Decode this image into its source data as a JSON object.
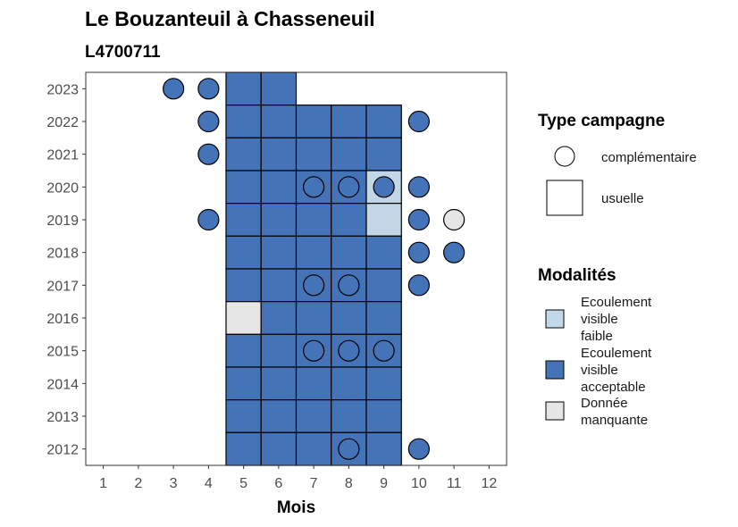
{
  "chart_data": {
    "type": "heatmap",
    "title": "Le Bouzanteuil à Chasseneuil",
    "subtitle": "L4700711",
    "xlabel": "Mois",
    "ylabel": "",
    "x_ticks": [
      "1",
      "2",
      "3",
      "4",
      "5",
      "6",
      "7",
      "8",
      "9",
      "10",
      "11",
      "12"
    ],
    "y_ticks": [
      "2012",
      "2013",
      "2014",
      "2015",
      "2016",
      "2017",
      "2018",
      "2019",
      "2020",
      "2021",
      "2022",
      "2023"
    ],
    "xlim": [
      0.5,
      12.5
    ],
    "ylim": [
      2011.5,
      2023.5
    ],
    "colors": {
      "Ecoulement visible faible": "#c2d7e7",
      "Ecoulement visible acceptable": "#4573b8",
      "Donnée manquante": "#e6e6e6"
    },
    "legend_type": {
      "title": "Type campagne",
      "items": [
        {
          "label": "complémentaire",
          "shape": "circle"
        },
        {
          "label": "usuelle",
          "shape": "square"
        }
      ]
    },
    "legend_modalites": {
      "title": "Modalités",
      "items": [
        {
          "key": "Ecoulement visible faible",
          "lines": [
            "Ecoulement",
            "visible",
            "faible"
          ]
        },
        {
          "key": "Ecoulement visible acceptable",
          "lines": [
            "Ecoulement",
            "visible",
            "acceptable"
          ]
        },
        {
          "key": "Donnée manquante",
          "lines": [
            "Donnée",
            "manquante"
          ]
        }
      ]
    },
    "usuelle": [
      {
        "year": 2023,
        "month": 5,
        "value": "Ecoulement visible acceptable"
      },
      {
        "year": 2023,
        "month": 6,
        "value": "Ecoulement visible acceptable"
      },
      {
        "year": 2022,
        "month": 5,
        "value": "Ecoulement visible acceptable"
      },
      {
        "year": 2022,
        "month": 6,
        "value": "Ecoulement visible acceptable"
      },
      {
        "year": 2022,
        "month": 7,
        "value": "Ecoulement visible acceptable"
      },
      {
        "year": 2022,
        "month": 8,
        "value": "Ecoulement visible acceptable"
      },
      {
        "year": 2022,
        "month": 9,
        "value": "Ecoulement visible acceptable"
      },
      {
        "year": 2021,
        "month": 5,
        "value": "Ecoulement visible acceptable"
      },
      {
        "year": 2021,
        "month": 6,
        "value": "Ecoulement visible acceptable"
      },
      {
        "year": 2021,
        "month": 7,
        "value": "Ecoulement visible acceptable"
      },
      {
        "year": 2021,
        "month": 8,
        "value": "Ecoulement visible acceptable"
      },
      {
        "year": 2021,
        "month": 9,
        "value": "Ecoulement visible acceptable"
      },
      {
        "year": 2020,
        "month": 5,
        "value": "Ecoulement visible acceptable"
      },
      {
        "year": 2020,
        "month": 6,
        "value": "Ecoulement visible acceptable"
      },
      {
        "year": 2020,
        "month": 7,
        "value": "Ecoulement visible acceptable"
      },
      {
        "year": 2020,
        "month": 8,
        "value": "Ecoulement visible acceptable"
      },
      {
        "year": 2020,
        "month": 9,
        "value": "Ecoulement visible faible"
      },
      {
        "year": 2019,
        "month": 5,
        "value": "Ecoulement visible acceptable"
      },
      {
        "year": 2019,
        "month": 6,
        "value": "Ecoulement visible acceptable"
      },
      {
        "year": 2019,
        "month": 7,
        "value": "Ecoulement visible acceptable"
      },
      {
        "year": 2019,
        "month": 8,
        "value": "Ecoulement visible acceptable"
      },
      {
        "year": 2019,
        "month": 9,
        "value": "Ecoulement visible faible"
      },
      {
        "year": 2018,
        "month": 5,
        "value": "Ecoulement visible acceptable"
      },
      {
        "year": 2018,
        "month": 6,
        "value": "Ecoulement visible acceptable"
      },
      {
        "year": 2018,
        "month": 7,
        "value": "Ecoulement visible acceptable"
      },
      {
        "year": 2018,
        "month": 8,
        "value": "Ecoulement visible acceptable"
      },
      {
        "year": 2018,
        "month": 9,
        "value": "Ecoulement visible acceptable"
      },
      {
        "year": 2017,
        "month": 5,
        "value": "Ecoulement visible acceptable"
      },
      {
        "year": 2017,
        "month": 6,
        "value": "Ecoulement visible acceptable"
      },
      {
        "year": 2017,
        "month": 7,
        "value": "Ecoulement visible acceptable"
      },
      {
        "year": 2017,
        "month": 8,
        "value": "Ecoulement visible acceptable"
      },
      {
        "year": 2017,
        "month": 9,
        "value": "Ecoulement visible acceptable"
      },
      {
        "year": 2016,
        "month": 5,
        "value": "Donnée manquante"
      },
      {
        "year": 2016,
        "month": 6,
        "value": "Ecoulement visible acceptable"
      },
      {
        "year": 2016,
        "month": 7,
        "value": "Ecoulement visible acceptable"
      },
      {
        "year": 2016,
        "month": 8,
        "value": "Ecoulement visible acceptable"
      },
      {
        "year": 2016,
        "month": 9,
        "value": "Ecoulement visible acceptable"
      },
      {
        "year": 2015,
        "month": 5,
        "value": "Ecoulement visible acceptable"
      },
      {
        "year": 2015,
        "month": 6,
        "value": "Ecoulement visible acceptable"
      },
      {
        "year": 2015,
        "month": 7,
        "value": "Ecoulement visible acceptable"
      },
      {
        "year": 2015,
        "month": 8,
        "value": "Ecoulement visible acceptable"
      },
      {
        "year": 2015,
        "month": 9,
        "value": "Ecoulement visible acceptable"
      },
      {
        "year": 2014,
        "month": 5,
        "value": "Ecoulement visible acceptable"
      },
      {
        "year": 2014,
        "month": 6,
        "value": "Ecoulement visible acceptable"
      },
      {
        "year": 2014,
        "month": 7,
        "value": "Ecoulement visible acceptable"
      },
      {
        "year": 2014,
        "month": 8,
        "value": "Ecoulement visible acceptable"
      },
      {
        "year": 2014,
        "month": 9,
        "value": "Ecoulement visible acceptable"
      },
      {
        "year": 2013,
        "month": 5,
        "value": "Ecoulement visible acceptable"
      },
      {
        "year": 2013,
        "month": 6,
        "value": "Ecoulement visible acceptable"
      },
      {
        "year": 2013,
        "month": 7,
        "value": "Ecoulement visible acceptable"
      },
      {
        "year": 2013,
        "month": 8,
        "value": "Ecoulement visible acceptable"
      },
      {
        "year": 2013,
        "month": 9,
        "value": "Ecoulement visible acceptable"
      },
      {
        "year": 2012,
        "month": 5,
        "value": "Ecoulement visible acceptable"
      },
      {
        "year": 2012,
        "month": 6,
        "value": "Ecoulement visible acceptable"
      },
      {
        "year": 2012,
        "month": 7,
        "value": "Ecoulement visible acceptable"
      },
      {
        "year": 2012,
        "month": 8,
        "value": "Ecoulement visible acceptable"
      },
      {
        "year": 2012,
        "month": 9,
        "value": "Ecoulement visible acceptable"
      }
    ],
    "complementaire": [
      {
        "year": 2023,
        "month": 3,
        "value": "Ecoulement visible acceptable"
      },
      {
        "year": 2023,
        "month": 4,
        "value": "Ecoulement visible acceptable"
      },
      {
        "year": 2022,
        "month": 4,
        "value": "Ecoulement visible acceptable"
      },
      {
        "year": 2022,
        "month": 10,
        "value": "Ecoulement visible acceptable"
      },
      {
        "year": 2021,
        "month": 4,
        "value": "Ecoulement visible acceptable"
      },
      {
        "year": 2020,
        "month": 7,
        "value": "Ecoulement visible acceptable"
      },
      {
        "year": 2020,
        "month": 8,
        "value": "Ecoulement visible acceptable"
      },
      {
        "year": 2020,
        "month": 9,
        "value": "Ecoulement visible acceptable"
      },
      {
        "year": 2020,
        "month": 10,
        "value": "Ecoulement visible acceptable"
      },
      {
        "year": 2019,
        "month": 4,
        "value": "Ecoulement visible acceptable"
      },
      {
        "year": 2019,
        "month": 10,
        "value": "Ecoulement visible acceptable"
      },
      {
        "year": 2019,
        "month": 11,
        "value": "Donnée manquante"
      },
      {
        "year": 2018,
        "month": 10,
        "value": "Ecoulement visible acceptable"
      },
      {
        "year": 2018,
        "month": 11,
        "value": "Ecoulement visible acceptable"
      },
      {
        "year": 2017,
        "month": 7,
        "value": "Ecoulement visible acceptable"
      },
      {
        "year": 2017,
        "month": 8,
        "value": "Ecoulement visible acceptable"
      },
      {
        "year": 2017,
        "month": 10,
        "value": "Ecoulement visible acceptable"
      },
      {
        "year": 2015,
        "month": 7,
        "value": "Ecoulement visible acceptable"
      },
      {
        "year": 2015,
        "month": 8,
        "value": "Ecoulement visible acceptable"
      },
      {
        "year": 2015,
        "month": 9,
        "value": "Ecoulement visible acceptable"
      },
      {
        "year": 2012,
        "month": 8,
        "value": "Ecoulement visible acceptable"
      },
      {
        "year": 2012,
        "month": 10,
        "value": "Ecoulement visible acceptable"
      }
    ]
  }
}
